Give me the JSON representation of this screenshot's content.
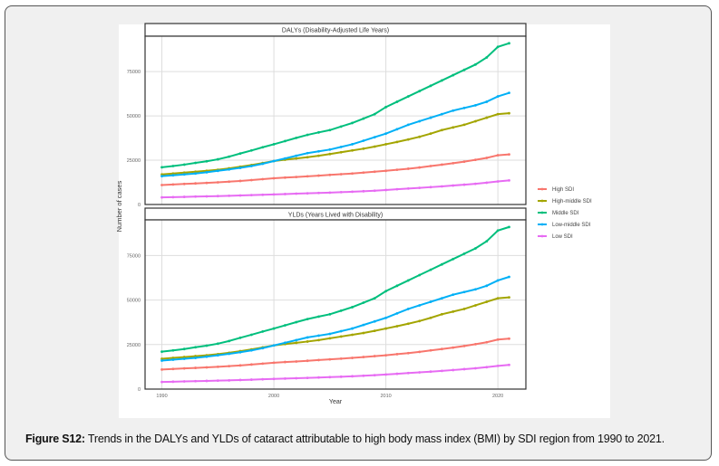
{
  "caption": {
    "label": "Figure S12:",
    "text": " Trends in the DALYs and YLDs of cataract attributable to high body mass index (BMI) by SDI region from 1990 to 2021."
  },
  "chart_data": {
    "type": "line",
    "ylabel": "Number of cases",
    "xlabel": "Year",
    "x_ticks": [
      1990,
      2000,
      2010,
      2020
    ],
    "y_ticks": [
      0,
      25000,
      50000,
      75000
    ],
    "xlim": [
      1988.5,
      2022.5
    ],
    "ylim": [
      0,
      95000
    ],
    "grid": true,
    "legend_position": "right",
    "x": [
      1990,
      1991,
      1992,
      1993,
      1994,
      1995,
      1996,
      1997,
      1998,
      1999,
      2000,
      2001,
      2002,
      2003,
      2004,
      2005,
      2006,
      2007,
      2008,
      2009,
      2010,
      2011,
      2012,
      2013,
      2014,
      2015,
      2016,
      2017,
      2018,
      2019,
      2020,
      2021
    ],
    "legend": [
      {
        "name": "High SDI",
        "color": "#F8766D"
      },
      {
        "name": "High-middle SDI",
        "color": "#A3A500"
      },
      {
        "name": "Middle SDI",
        "color": "#00BF7D"
      },
      {
        "name": "Low-middle SDI",
        "color": "#00B0F6"
      },
      {
        "name": "Low SDI",
        "color": "#E76BF3"
      }
    ],
    "panels": [
      {
        "title": "DALYs (Disability-Adjusted Life Years)",
        "series": [
          {
            "name": "High SDI",
            "values": [
              11000,
              11300,
              11600,
              11900,
              12200,
              12500,
              12900,
              13300,
              13800,
              14300,
              14800,
              15200,
              15500,
              15900,
              16300,
              16700,
              17100,
              17500,
              18000,
              18500,
              19000,
              19600,
              20200,
              20900,
              21700,
              22500,
              23300,
              24200,
              25200,
              26300,
              27800,
              28300
            ]
          },
          {
            "name": "High-middle SDI",
            "values": [
              17000,
              17500,
              18000,
              18500,
              19000,
              19600,
              20400,
              21300,
              22300,
              23400,
              24500,
              25300,
              26000,
              26700,
              27500,
              28500,
              29500,
              30500,
              31500,
              32700,
              34000,
              35300,
              36700,
              38200,
              40000,
              42000,
              43500,
              45000,
              47000,
              49000,
              51000,
              51500
            ]
          },
          {
            "name": "Middle SDI",
            "values": [
              21000,
              21700,
              22500,
              23500,
              24400,
              25500,
              27000,
              28800,
              30500,
              32300,
              34000,
              35800,
              37600,
              39300,
              40700,
              42000,
              44000,
              46000,
              48500,
              51000,
              55000,
              58000,
              61000,
              64000,
              67000,
              70000,
              73000,
              76000,
              79000,
              83000,
              89000,
              91000
            ]
          },
          {
            "name": "Low-middle SDI",
            "values": [
              16000,
              16500,
              17000,
              17500,
              18200,
              19000,
              19800,
              20700,
              21700,
              23000,
              24500,
              26000,
              27500,
              29000,
              30000,
              31000,
              32500,
              34000,
              36000,
              38000,
              40000,
              42500,
              45000,
              47000,
              49000,
              51000,
              53000,
              54500,
              56000,
              58000,
              61000,
              63000
            ]
          },
          {
            "name": "Low SDI",
            "values": [
              4000,
              4150,
              4300,
              4450,
              4600,
              4750,
              4900,
              5100,
              5300,
              5500,
              5700,
              5900,
              6100,
              6300,
              6500,
              6700,
              6950,
              7200,
              7500,
              7800,
              8200,
              8600,
              9000,
              9400,
              9800,
              10200,
              10700,
              11200,
              11700,
              12300,
              13000,
              13600
            ]
          }
        ]
      },
      {
        "title": "YLDs (Years Lived with Disability)",
        "series": [
          {
            "name": "High SDI",
            "values": [
              11000,
              11300,
              11600,
              11900,
              12200,
              12500,
              12900,
              13300,
              13800,
              14300,
              14800,
              15200,
              15500,
              15900,
              16300,
              16700,
              17100,
              17500,
              18000,
              18500,
              19000,
              19600,
              20200,
              20900,
              21700,
              22500,
              23300,
              24200,
              25200,
              26300,
              27800,
              28300
            ]
          },
          {
            "name": "High-middle SDI",
            "values": [
              17000,
              17500,
              18000,
              18500,
              19000,
              19600,
              20400,
              21300,
              22300,
              23400,
              24500,
              25300,
              26000,
              26700,
              27500,
              28500,
              29500,
              30500,
              31500,
              32700,
              34000,
              35300,
              36700,
              38200,
              40000,
              42000,
              43500,
              45000,
              47000,
              49000,
              51000,
              51500
            ]
          },
          {
            "name": "Middle SDI",
            "values": [
              21000,
              21700,
              22500,
              23500,
              24400,
              25500,
              27000,
              28800,
              30500,
              32300,
              34000,
              35800,
              37600,
              39300,
              40700,
              42000,
              44000,
              46000,
              48500,
              51000,
              55000,
              58000,
              61000,
              64000,
              67000,
              70000,
              73000,
              76000,
              79000,
              83000,
              89000,
              91000
            ]
          },
          {
            "name": "Low-middle SDI",
            "values": [
              16000,
              16500,
              17000,
              17500,
              18200,
              19000,
              19800,
              20700,
              21700,
              23000,
              24500,
              26000,
              27500,
              29000,
              30000,
              31000,
              32500,
              34000,
              36000,
              38000,
              40000,
              42500,
              45000,
              47000,
              49000,
              51000,
              53000,
              54500,
              56000,
              58000,
              61000,
              63000
            ]
          },
          {
            "name": "Low SDI",
            "values": [
              4000,
              4150,
              4300,
              4450,
              4600,
              4750,
              4900,
              5100,
              5300,
              5500,
              5700,
              5900,
              6100,
              6300,
              6500,
              6700,
              6950,
              7200,
              7500,
              7800,
              8200,
              8600,
              9000,
              9400,
              9800,
              10200,
              10700,
              11200,
              11700,
              12300,
              13000,
              13600
            ]
          }
        ]
      }
    ]
  }
}
